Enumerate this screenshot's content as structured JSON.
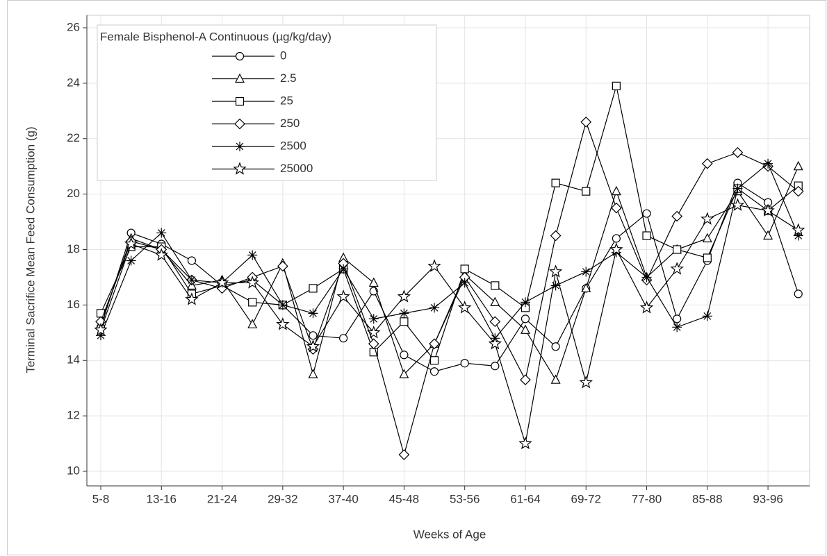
{
  "chart_data": {
    "type": "line",
    "xlabel": "Weeks of Age",
    "ylabel": "Terminal Sacrifice Mean Feed Consumption (g)",
    "legend_title": "Female Bisphenol-A Continuous (µg/kg/day)",
    "legend": "upper left",
    "grid": true,
    "categories": [
      "5-8",
      null,
      "13-16",
      null,
      "21-24",
      null,
      "29-32",
      null,
      "37-40",
      null,
      "45-48",
      null,
      "53-56",
      null,
      "61-64",
      null,
      "69-72",
      null,
      "77-80",
      null,
      "85-88",
      null,
      "93-96",
      null
    ],
    "ylim": [
      10,
      26
    ],
    "yticks": [
      10,
      12,
      14,
      16,
      18,
      20,
      22,
      24,
      26
    ],
    "series": [
      {
        "name": "0",
        "marker": "circle",
        "color": "#000000",
        "values": [
          15.2,
          18.6,
          18.2,
          17.6,
          16.7,
          16.9,
          16.0,
          14.9,
          14.8,
          16.5,
          14.2,
          13.6,
          13.9,
          13.8,
          15.5,
          14.5,
          16.6,
          18.4,
          19.3,
          15.5,
          17.6,
          20.4,
          19.7,
          16.4
        ]
      },
      {
        "name": "2.5",
        "marker": "triangle",
        "color": "#000000",
        "values": [
          15.3,
          18.4,
          18.0,
          16.7,
          16.9,
          15.3,
          17.5,
          13.5,
          17.7,
          16.8,
          13.5,
          14.6,
          17.1,
          16.1,
          15.1,
          13.3,
          16.6,
          20.1,
          17.0,
          18.0,
          18.4,
          20.1,
          18.5,
          21.0
        ]
      },
      {
        "name": "25",
        "marker": "square",
        "color": "#000000",
        "values": [
          15.7,
          18.1,
          18.1,
          16.4,
          16.7,
          16.1,
          16.0,
          16.6,
          17.3,
          14.3,
          15.4,
          14.0,
          17.3,
          16.7,
          15.9,
          20.4,
          20.1,
          23.9,
          18.5,
          18.0,
          17.7,
          20.2,
          19.4,
          20.3
        ]
      },
      {
        "name": "250",
        "marker": "diamond",
        "color": "#000000",
        "values": [
          15.4,
          18.3,
          18.0,
          16.9,
          16.6,
          17.0,
          17.4,
          14.4,
          17.5,
          14.6,
          10.6,
          14.6,
          17.0,
          15.4,
          13.3,
          18.5,
          22.6,
          19.5,
          16.9,
          19.2,
          21.1,
          21.5,
          21.0,
          20.1
        ]
      },
      {
        "name": "2500",
        "marker": "asterisk",
        "color": "#000000",
        "values": [
          14.9,
          17.6,
          18.6,
          16.9,
          16.8,
          17.8,
          16.0,
          15.7,
          17.3,
          15.5,
          15.7,
          15.9,
          16.8,
          14.8,
          16.1,
          16.7,
          17.2,
          17.9,
          17.0,
          15.2,
          15.6,
          20.2,
          21.1,
          18.5
        ]
      },
      {
        "name": "25000",
        "marker": "star",
        "color": "#000000",
        "values": [
          15.1,
          18.2,
          17.8,
          16.2,
          16.8,
          16.8,
          15.3,
          14.5,
          16.3,
          15.0,
          16.3,
          17.4,
          15.9,
          14.6,
          11.0,
          17.2,
          13.2,
          18.0,
          15.9,
          17.3,
          19.1,
          19.6,
          19.4,
          18.7
        ]
      }
    ]
  }
}
